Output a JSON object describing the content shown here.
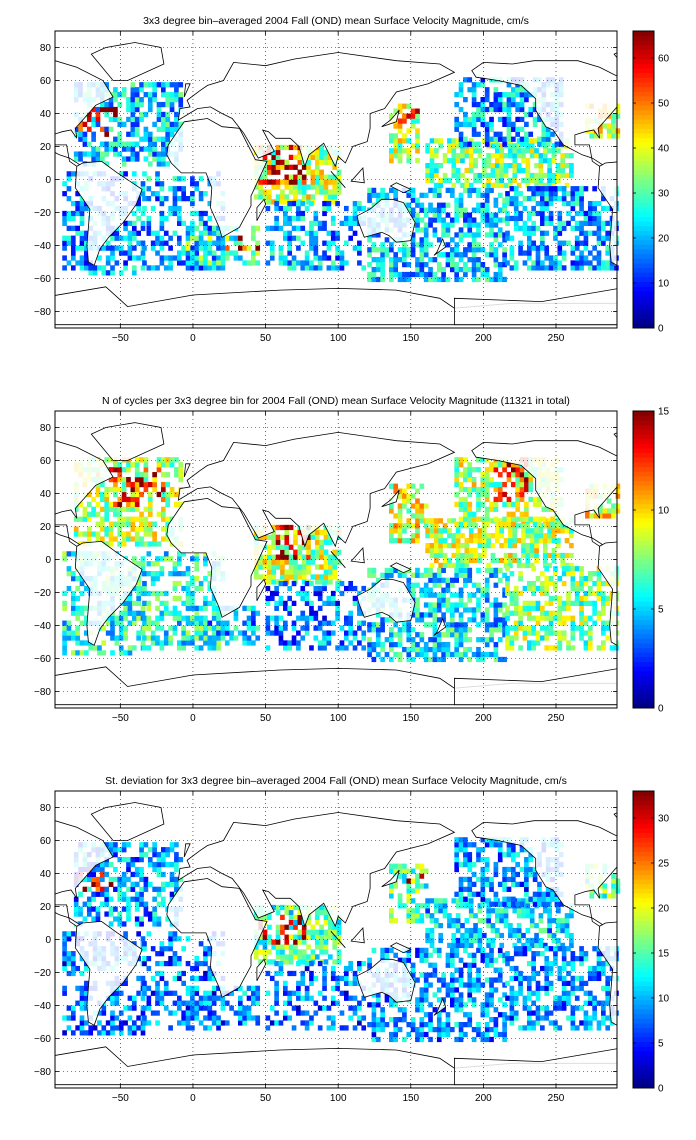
{
  "chart_data": [
    {
      "type": "heatmap",
      "title": "3x3 degree bin–averaged 2004 Fall (OND) mean Surface Velocity Magnitude, cm/s",
      "xlabel": "",
      "ylabel": "",
      "xlim": [
        -95,
        292
      ],
      "ylim": [
        -90,
        90
      ],
      "x_ticks": [
        -50,
        0,
        50,
        100,
        150,
        200,
        250
      ],
      "y_ticks": [
        -80,
        -60,
        -40,
        -20,
        0,
        20,
        40,
        60,
        80
      ],
      "grid": true,
      "colormap": "jet",
      "colorbar": {
        "range": [
          0,
          66
        ],
        "ticks": [
          0,
          10,
          20,
          30,
          40,
          50,
          60
        ]
      },
      "bin_size_deg": 3,
      "level_scale": 66,
      "regions": [
        {
          "lon": [
            -82,
            -8
          ],
          "lat": [
            8,
            58
          ],
          "dens": 0.6,
          "level": 0.33,
          "hi": {
            "lon": [
              -82,
              -55
            ],
            "lat": [
              25,
              42
            ],
            "level": 0.9
          }
        },
        {
          "lon": [
            -90,
            -35
          ],
          "lat": [
            -58,
            5
          ],
          "dens": 0.55,
          "level": 0.28
        },
        {
          "lon": [
            -35,
            20
          ],
          "lat": [
            -55,
            5
          ],
          "dens": 0.45,
          "level": 0.3
        },
        {
          "lon": [
            -5,
            45
          ],
          "lat": [
            -52,
            -30
          ],
          "dens": 0.6,
          "level": 0.45,
          "hi": {
            "lon": [
              20,
              75
            ],
            "lat": [
              -45,
              -37
            ],
            "level": 0.9
          }
        },
        {
          "lon": [
            42,
            100
          ],
          "lat": [
            -15,
            20
          ],
          "dens": 0.75,
          "level": 0.55,
          "hi": {
            "lon": [
              45,
              75
            ],
            "lat": [
              -5,
              18
            ],
            "level": 0.95
          }
        },
        {
          "lon": [
            50,
            118
          ],
          "lat": [
            -55,
            -15
          ],
          "dens": 0.45,
          "level": 0.3
        },
        {
          "lon": [
            120,
            215
          ],
          "lat": [
            -62,
            -5
          ],
          "dens": 0.6,
          "level": 0.32
        },
        {
          "lon": [
            135,
            155
          ],
          "lat": [
            10,
            45
          ],
          "dens": 0.6,
          "level": 0.55,
          "hi": {
            "lon": [
              140,
              160
            ],
            "lat": [
              30,
              42
            ],
            "level": 0.9
          }
        },
        {
          "lon": [
            160,
            260
          ],
          "lat": [
            -5,
            25
          ],
          "dens": 0.65,
          "level": 0.5
        },
        {
          "lon": [
            180,
            255
          ],
          "lat": [
            20,
            60
          ],
          "dens": 0.6,
          "level": 0.3
        },
        {
          "lon": [
            215,
            292
          ],
          "lat": [
            -55,
            -5
          ],
          "dens": 0.6,
          "level": 0.3
        },
        {
          "lon": [
            270,
            292
          ],
          "lat": [
            25,
            45
          ],
          "dens": 0.6,
          "level": 0.6
        }
      ],
      "annotations": []
    },
    {
      "type": "heatmap",
      "title": "N of cycles per 3x3 degree bin for 2004 Fall (OND) mean Surface Velocity Magnitude (11321 in total)",
      "xlabel": "",
      "ylabel": "",
      "xlim": [
        -95,
        292
      ],
      "ylim": [
        -90,
        90
      ],
      "x_ticks": [
        -50,
        0,
        50,
        100,
        150,
        200,
        250
      ],
      "y_ticks": [
        -80,
        -60,
        -40,
        -20,
        0,
        20,
        40,
        60,
        80
      ],
      "grid": true,
      "colormap": "jet",
      "colorbar": {
        "range": [
          0,
          15
        ],
        "ticks": [
          0,
          5,
          10,
          15
        ]
      },
      "bin_size_deg": 3,
      "level_scale": 15,
      "regions": [
        {
          "lon": [
            -82,
            -8
          ],
          "lat": [
            8,
            62
          ],
          "dens": 0.6,
          "level": 0.55,
          "hi": {
            "lon": [
              -60,
              -20
            ],
            "lat": [
              30,
              55
            ],
            "level": 0.9
          }
        },
        {
          "lon": [
            -90,
            -35
          ],
          "lat": [
            -58,
            5
          ],
          "dens": 0.55,
          "level": 0.4
        },
        {
          "lon": [
            -35,
            20
          ],
          "lat": [
            -55,
            5
          ],
          "dens": 0.45,
          "level": 0.4
        },
        {
          "lon": [
            -5,
            45
          ],
          "lat": [
            -52,
            -30
          ],
          "dens": 0.55,
          "level": 0.3
        },
        {
          "lon": [
            42,
            100
          ],
          "lat": [
            -15,
            20
          ],
          "dens": 0.8,
          "level": 0.55,
          "hi": {
            "lon": [
              55,
              80
            ],
            "lat": [
              0,
              18
            ],
            "level": 0.95
          }
        },
        {
          "lon": [
            50,
            118
          ],
          "lat": [
            -55,
            -15
          ],
          "dens": 0.5,
          "level": 0.25
        },
        {
          "lon": [
            120,
            215
          ],
          "lat": [
            -62,
            -5
          ],
          "dens": 0.6,
          "level": 0.35
        },
        {
          "lon": [
            135,
            160
          ],
          "lat": [
            10,
            45
          ],
          "dens": 0.55,
          "level": 0.6
        },
        {
          "lon": [
            160,
            260
          ],
          "lat": [
            -5,
            25
          ],
          "dens": 0.65,
          "level": 0.55
        },
        {
          "lon": [
            180,
            255
          ],
          "lat": [
            20,
            62
          ],
          "dens": 0.6,
          "level": 0.55,
          "hi": {
            "lon": [
              205,
              230
            ],
            "lat": [
              35,
              60
            ],
            "level": 0.85
          }
        },
        {
          "lon": [
            215,
            292
          ],
          "lat": [
            -55,
            -5
          ],
          "dens": 0.6,
          "level": 0.5
        },
        {
          "lon": [
            270,
            292
          ],
          "lat": [
            25,
            45
          ],
          "dens": 0.6,
          "level": 0.6
        }
      ],
      "annotations": []
    },
    {
      "type": "heatmap",
      "title": "St. deviation for 3x3 degree bin–averaged 2004 Fall (OND) mean Surface Velocity Magnitude, cm/s",
      "xlabel": "",
      "ylabel": "",
      "xlim": [
        -95,
        292
      ],
      "ylim": [
        -90,
        90
      ],
      "x_ticks": [
        -50,
        0,
        50,
        100,
        150,
        200,
        250
      ],
      "y_ticks": [
        -80,
        -60,
        -40,
        -20,
        0,
        20,
        40,
        60,
        80
      ],
      "grid": true,
      "colormap": "jet",
      "colorbar": {
        "range": [
          0,
          33
        ],
        "ticks": [
          0,
          5,
          10,
          15,
          20,
          25,
          30
        ]
      },
      "bin_size_deg": 3,
      "level_scale": 33,
      "regions": [
        {
          "lon": [
            -82,
            -8
          ],
          "lat": [
            8,
            58
          ],
          "dens": 0.6,
          "level": 0.28,
          "hi": {
            "lon": [
              -82,
              -55
            ],
            "lat": [
              28,
              42
            ],
            "level": 0.9
          }
        },
        {
          "lon": [
            -90,
            -35
          ],
          "lat": [
            -58,
            5
          ],
          "dens": 0.55,
          "level": 0.22
        },
        {
          "lon": [
            -35,
            20
          ],
          "lat": [
            -55,
            5
          ],
          "dens": 0.45,
          "level": 0.22
        },
        {
          "lon": [
            -5,
            45
          ],
          "lat": [
            -52,
            -30
          ],
          "dens": 0.55,
          "level": 0.25
        },
        {
          "lon": [
            42,
            100
          ],
          "lat": [
            -15,
            20
          ],
          "dens": 0.75,
          "level": 0.45,
          "hi": {
            "lon": [
              45,
              75
            ],
            "lat": [
              -5,
              12
            ],
            "level": 0.95
          }
        },
        {
          "lon": [
            50,
            118
          ],
          "lat": [
            -55,
            -15
          ],
          "dens": 0.45,
          "level": 0.22
        },
        {
          "lon": [
            120,
            215
          ],
          "lat": [
            -62,
            -5
          ],
          "dens": 0.6,
          "level": 0.25
        },
        {
          "lon": [
            135,
            160
          ],
          "lat": [
            10,
            45
          ],
          "dens": 0.6,
          "level": 0.45,
          "hi": {
            "lon": [
              145,
              160
            ],
            "lat": [
              32,
              40
            ],
            "level": 0.9
          }
        },
        {
          "lon": [
            160,
            260
          ],
          "lat": [
            -5,
            25
          ],
          "dens": 0.65,
          "level": 0.32
        },
        {
          "lon": [
            180,
            255
          ],
          "lat": [
            20,
            60
          ],
          "dens": 0.6,
          "level": 0.25
        },
        {
          "lon": [
            215,
            292
          ],
          "lat": [
            -55,
            -5
          ],
          "dens": 0.6,
          "level": 0.25
        },
        {
          "lon": [
            270,
            292
          ],
          "lat": [
            25,
            45
          ],
          "dens": 0.6,
          "level": 0.45
        }
      ],
      "annotations": []
    }
  ],
  "colors": {
    "grid": "#000000",
    "axes": "#000000",
    "background": "#ffffff"
  }
}
